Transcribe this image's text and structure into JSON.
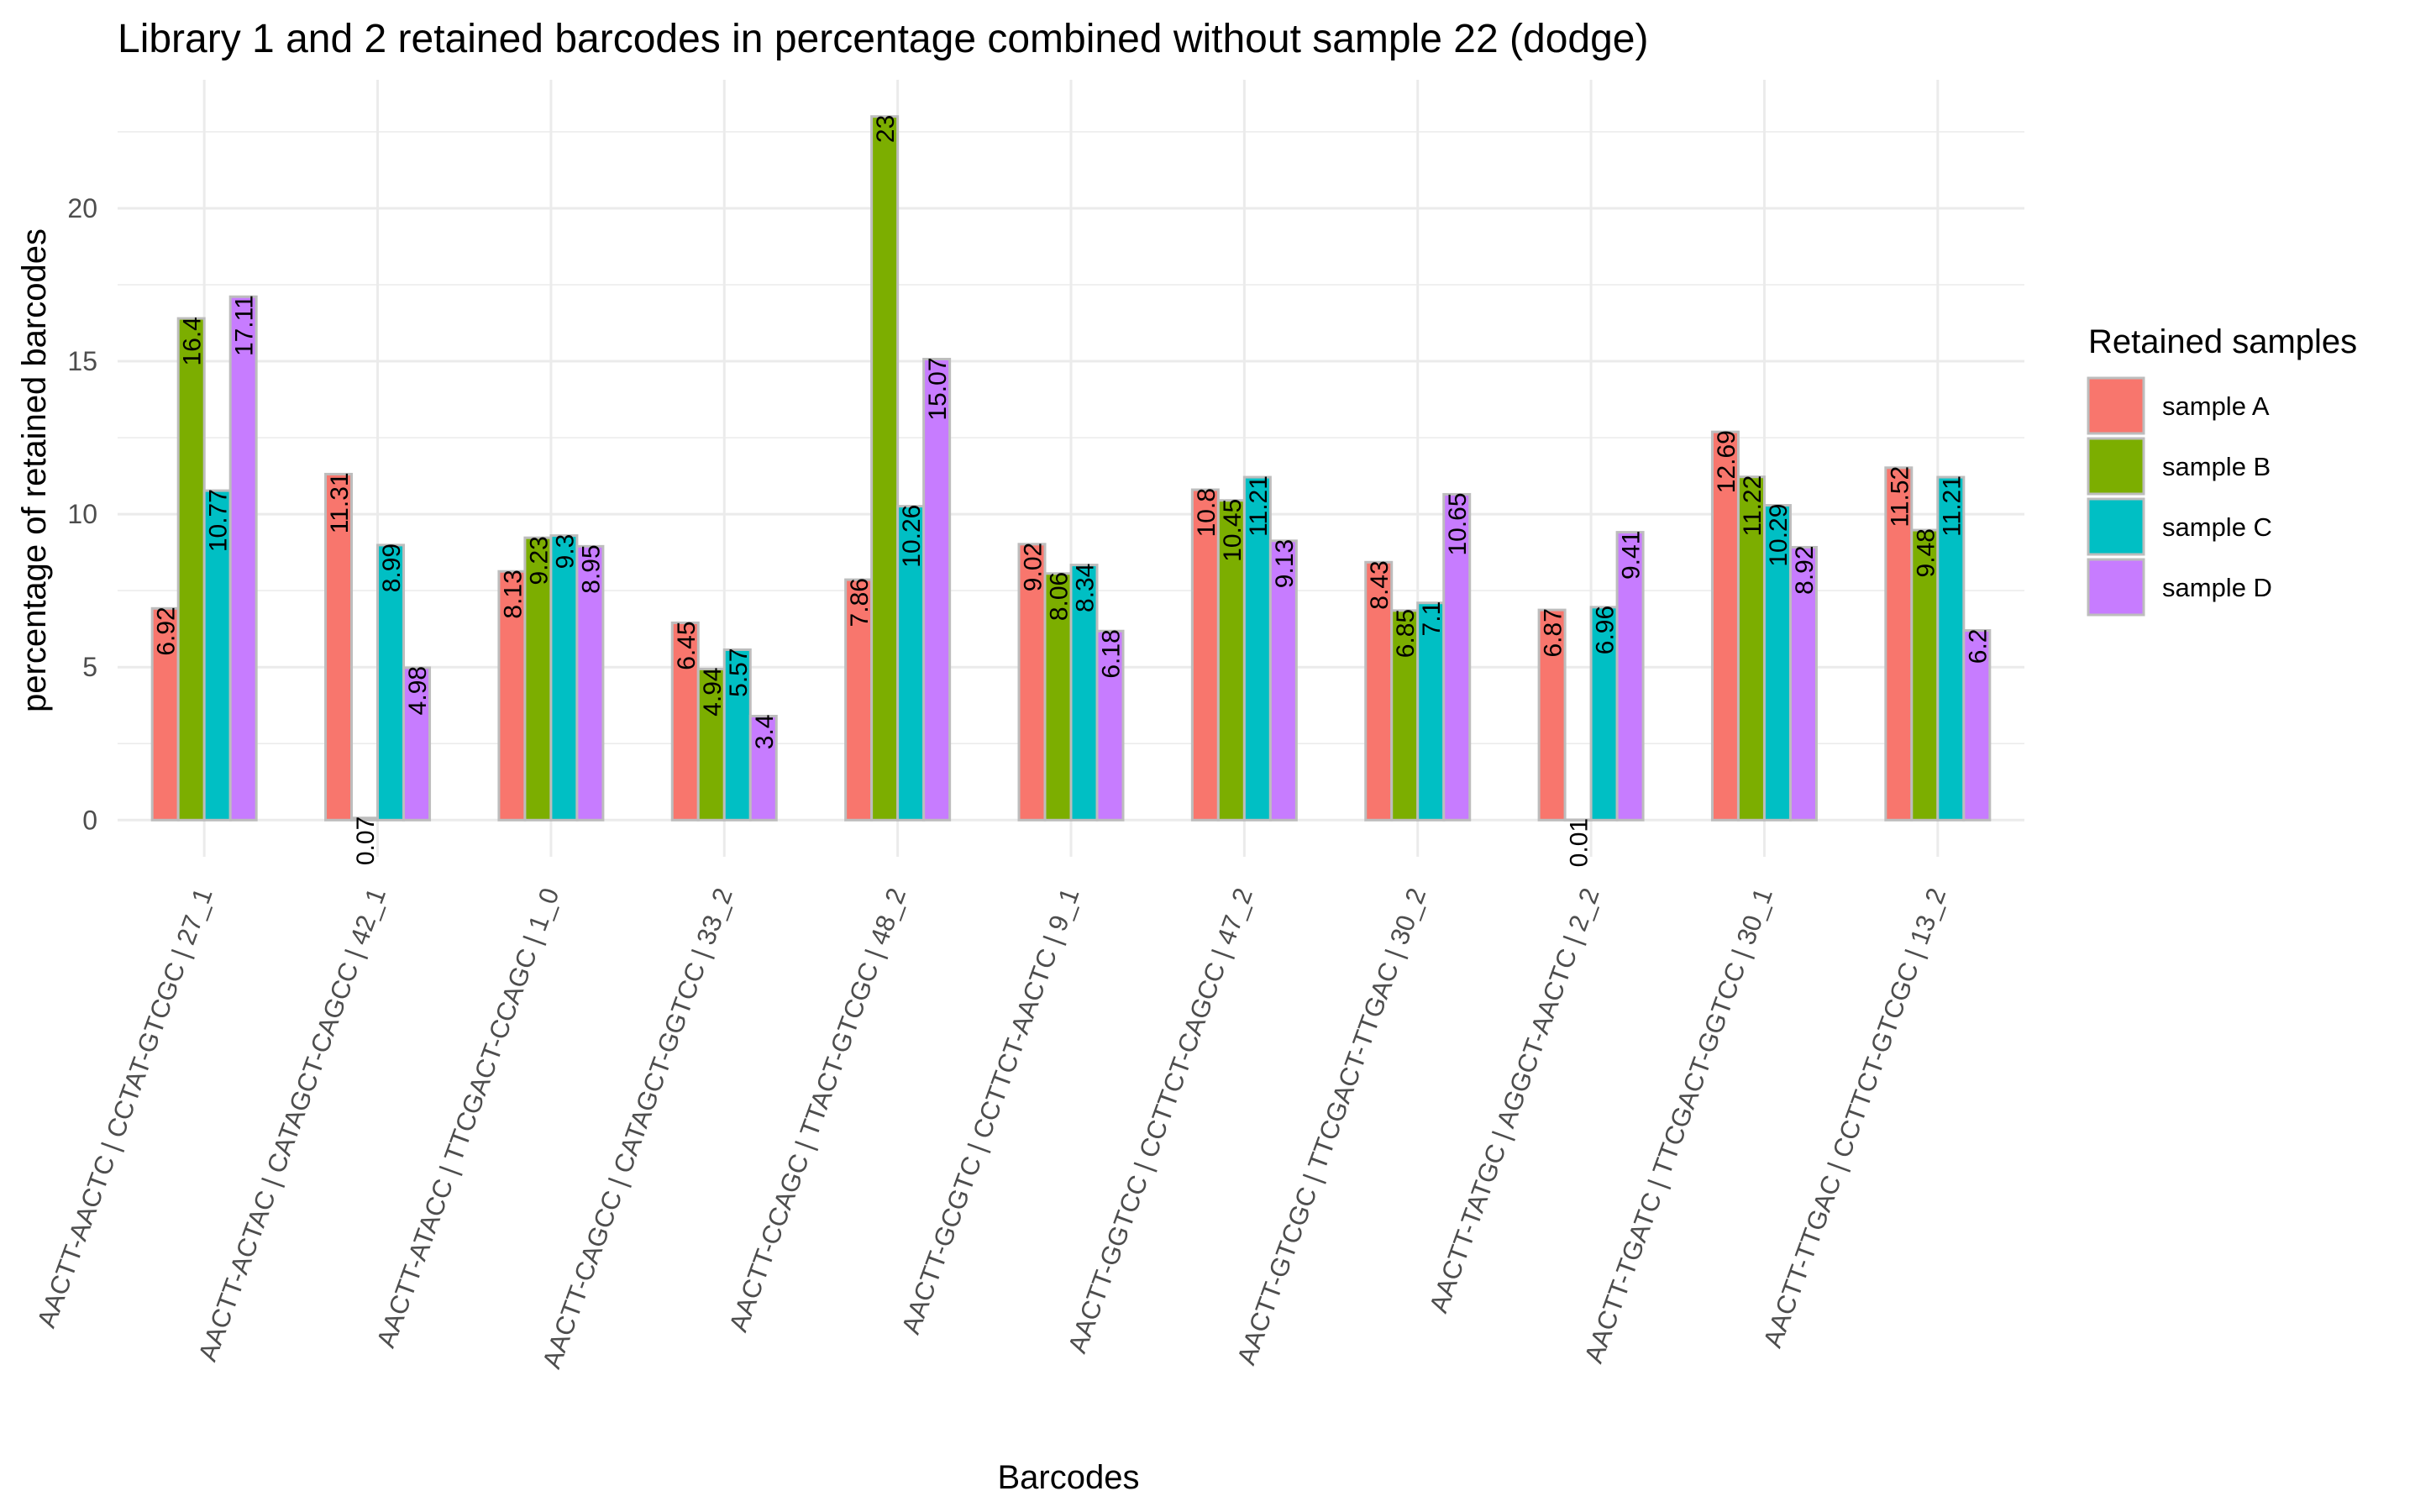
{
  "chart_data": {
    "type": "bar",
    "title": "Library 1 and 2 retained barcodes in percentage combined without sample 22 (dodge)",
    "xlabel": "Barcodes",
    "ylabel": "percentage of retained barcodes",
    "ylim": [
      -1.2,
      24.2
    ],
    "yticks": [
      0,
      5,
      10,
      15,
      20
    ],
    "grid": true,
    "legend": {
      "title": "Retained samples",
      "position": "right"
    },
    "categories": [
      "AACTT-AACTC | CCTAT-GTCGC | 27_1",
      "AACTT-ACTAC | CATAGCT-CAGCC | 42_1",
      "AACTT-ATACC | TTCGACT-CCAGC | 1_0",
      "AACTT-CAGCC | CATAGCT-GGTCC | 33_2",
      "AACTT-CCAGC | TTACT-GTCGC | 48_2",
      "AACTT-GCGTC | CCTTCT-AACTC | 9_1",
      "AACTT-GGTCC | CCTTCT-CAGCC | 47_2",
      "AACTT-GTCGC | TTCGACT-TTGAC | 30_2",
      "AACTT-TATGC | AGGCT-AACTC | 2_2",
      "AACTT-TGATC | TTCGACT-GGTCC | 30_1",
      "AACTT-TTGAC | CCTTCT-GTCGC | 13_2"
    ],
    "series": [
      {
        "name": "sample A",
        "color": "#F8766D",
        "values": [
          6.92,
          11.31,
          8.13,
          6.45,
          7.86,
          9.02,
          10.8,
          8.43,
          6.87,
          12.69,
          11.52
        ]
      },
      {
        "name": "sample B",
        "color": "#7CAE00",
        "values": [
          16.4,
          0.07,
          9.23,
          4.94,
          23,
          8.06,
          10.45,
          6.85,
          0.01,
          11.22,
          9.48
        ]
      },
      {
        "name": "sample C",
        "color": "#00BFC4",
        "values": [
          10.77,
          8.99,
          9.3,
          5.57,
          10.26,
          8.34,
          11.21,
          7.1,
          6.96,
          10.29,
          11.21
        ]
      },
      {
        "name": "sample D",
        "color": "#C77CFF",
        "values": [
          17.11,
          4.98,
          8.95,
          3.4,
          15.07,
          6.18,
          9.13,
          10.65,
          9.41,
          8.92,
          6.2
        ]
      }
    ]
  }
}
